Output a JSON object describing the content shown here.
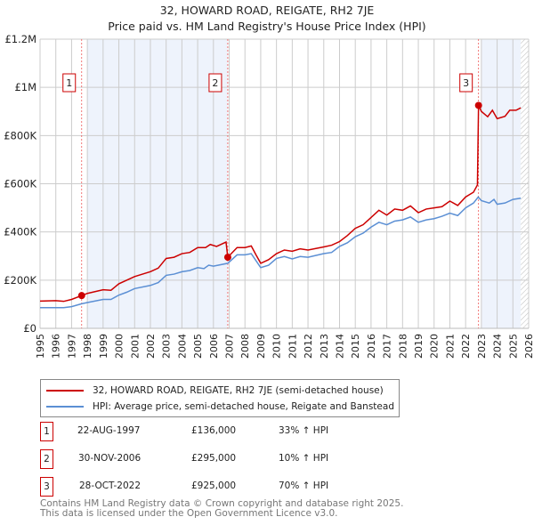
{
  "chart_data": {
    "type": "line",
    "title": "32, HOWARD ROAD, REIGATE, RH2 7JE",
    "subtitle": "Price paid vs. HM Land Registry's House Price Index (HPI)",
    "xlim": [
      1995,
      2026
    ],
    "ylim": [
      0,
      1200000
    ],
    "x_ticks": [
      "1995",
      "1996",
      "1997",
      "1998",
      "1999",
      "2000",
      "2001",
      "2002",
      "2003",
      "2004",
      "2005",
      "2006",
      "2007",
      "2008",
      "2009",
      "2010",
      "2011",
      "2012",
      "2013",
      "2014",
      "2015",
      "2016",
      "2017",
      "2018",
      "2019",
      "2020",
      "2021",
      "2022",
      "2023",
      "2024",
      "2025",
      "2026"
    ],
    "y_ticks": [
      {
        "v": 0,
        "label": "£0"
      },
      {
        "v": 200000,
        "label": "£200K"
      },
      {
        "v": 400000,
        "label": "£400K"
      },
      {
        "v": 600000,
        "label": "£600K"
      },
      {
        "v": 800000,
        "label": "£800K"
      },
      {
        "v": 1000000,
        "label": "£1M"
      },
      {
        "v": 1200000,
        "label": "£1.2M"
      }
    ],
    "grid": true,
    "series": [
      {
        "name": "32, HOWARD ROAD, REIGATE, RH2 7JE (semi-detached house)",
        "color": "#cc0000",
        "points": [
          [
            1995,
            113000
          ],
          [
            1996,
            115000
          ],
          [
            1996.5,
            112000
          ],
          [
            1997,
            120000
          ],
          [
            1997.64,
            136000
          ],
          [
            1998,
            145000
          ],
          [
            1999,
            160000
          ],
          [
            1999.5,
            158000
          ],
          [
            2000,
            185000
          ],
          [
            2001,
            215000
          ],
          [
            2002,
            235000
          ],
          [
            2002.5,
            250000
          ],
          [
            2003,
            290000
          ],
          [
            2003.5,
            295000
          ],
          [
            2004,
            310000
          ],
          [
            2004.5,
            315000
          ],
          [
            2005,
            335000
          ],
          [
            2005.5,
            335000
          ],
          [
            2005.8,
            348000
          ],
          [
            2006.2,
            340000
          ],
          [
            2006.8,
            358000
          ],
          [
            2006.91,
            295000
          ],
          [
            2007.5,
            335000
          ],
          [
            2008,
            335000
          ],
          [
            2008.4,
            342000
          ],
          [
            2008.7,
            305000
          ],
          [
            2009,
            270000
          ],
          [
            2009.5,
            285000
          ],
          [
            2010,
            310000
          ],
          [
            2010.5,
            325000
          ],
          [
            2011,
            320000
          ],
          [
            2011.5,
            330000
          ],
          [
            2012,
            325000
          ],
          [
            2013,
            338000
          ],
          [
            2013.5,
            345000
          ],
          [
            2014,
            360000
          ],
          [
            2014.5,
            385000
          ],
          [
            2015,
            415000
          ],
          [
            2015.5,
            430000
          ],
          [
            2016,
            460000
          ],
          [
            2016.5,
            490000
          ],
          [
            2017,
            470000
          ],
          [
            2017.5,
            495000
          ],
          [
            2018,
            490000
          ],
          [
            2018.5,
            508000
          ],
          [
            2019,
            480000
          ],
          [
            2019.5,
            495000
          ],
          [
            2020,
            500000
          ],
          [
            2020.5,
            505000
          ],
          [
            2021,
            528000
          ],
          [
            2021.5,
            510000
          ],
          [
            2022,
            545000
          ],
          [
            2022.5,
            565000
          ],
          [
            2022.75,
            595000
          ],
          [
            2022.82,
            925000
          ],
          [
            2023,
            900000
          ],
          [
            2023.4,
            878000
          ],
          [
            2023.7,
            905000
          ],
          [
            2024,
            870000
          ],
          [
            2024.5,
            880000
          ],
          [
            2024.8,
            905000
          ],
          [
            2025.2,
            905000
          ],
          [
            2025.5,
            915000
          ]
        ]
      },
      {
        "name": "HPI: Average price, semi-detached house, Reigate and Banstead",
        "color": "#5b8fd4",
        "points": [
          [
            1995,
            86000
          ],
          [
            1996,
            86000
          ],
          [
            1996.5,
            86000
          ],
          [
            1997,
            90000
          ],
          [
            1997.64,
            102000
          ],
          [
            1998,
            107000
          ],
          [
            1999,
            120000
          ],
          [
            1999.5,
            120000
          ],
          [
            2000,
            138000
          ],
          [
            2000.5,
            150000
          ],
          [
            2001,
            165000
          ],
          [
            2002,
            178000
          ],
          [
            2002.5,
            190000
          ],
          [
            2003,
            220000
          ],
          [
            2003.5,
            225000
          ],
          [
            2004,
            235000
          ],
          [
            2004.5,
            240000
          ],
          [
            2005,
            252000
          ],
          [
            2005.4,
            248000
          ],
          [
            2005.7,
            262000
          ],
          [
            2006,
            258000
          ],
          [
            2006.91,
            270000
          ],
          [
            2007.5,
            305000
          ],
          [
            2008,
            305000
          ],
          [
            2008.4,
            310000
          ],
          [
            2009,
            252000
          ],
          [
            2009.5,
            262000
          ],
          [
            2010,
            290000
          ],
          [
            2010.5,
            298000
          ],
          [
            2011,
            288000
          ],
          [
            2011.5,
            298000
          ],
          [
            2012,
            295000
          ],
          [
            2013,
            310000
          ],
          [
            2013.5,
            315000
          ],
          [
            2014,
            340000
          ],
          [
            2014.5,
            355000
          ],
          [
            2015,
            380000
          ],
          [
            2015.5,
            395000
          ],
          [
            2016,
            420000
          ],
          [
            2016.5,
            440000
          ],
          [
            2017,
            430000
          ],
          [
            2017.5,
            445000
          ],
          [
            2018,
            450000
          ],
          [
            2018.5,
            462000
          ],
          [
            2019,
            440000
          ],
          [
            2019.5,
            450000
          ],
          [
            2020,
            455000
          ],
          [
            2020.5,
            465000
          ],
          [
            2021,
            478000
          ],
          [
            2021.5,
            468000
          ],
          [
            2022,
            500000
          ],
          [
            2022.5,
            520000
          ],
          [
            2022.8,
            545000
          ],
          [
            2023,
            530000
          ],
          [
            2023.5,
            520000
          ],
          [
            2023.8,
            535000
          ],
          [
            2024,
            515000
          ],
          [
            2024.5,
            520000
          ],
          [
            2025,
            535000
          ],
          [
            2025.5,
            540000
          ]
        ]
      }
    ],
    "sales": [
      {
        "label": "1",
        "x": 1997.64,
        "y": 136000
      },
      {
        "label": "2",
        "x": 2006.91,
        "y": 295000
      },
      {
        "label": "3",
        "x": 2022.82,
        "y": 925000
      }
    ],
    "shaded_ranges": [
      [
        1998,
        2006.91
      ],
      [
        2023,
        2025.5
      ]
    ],
    "forecast_hatch_from": 2025.5
  },
  "legend": {
    "red": "32, HOWARD ROAD, REIGATE, RH2 7JE (semi-detached house)",
    "blue": "HPI: Average price, semi-detached house, Reigate and Banstead"
  },
  "table": [
    {
      "num": "1",
      "date": "22-AUG-1997",
      "price": "£136,000",
      "hpi": "33% ↑ HPI"
    },
    {
      "num": "2",
      "date": "30-NOV-2006",
      "price": "£295,000",
      "hpi": "10% ↑ HPI"
    },
    {
      "num": "3",
      "date": "28-OCT-2022",
      "price": "£925,000",
      "hpi": "70% ↑ HPI"
    }
  ],
  "footer": {
    "line1": "Contains HM Land Registry data © Crown copyright and database right 2025.",
    "line2": "This data is licensed under the Open Government Licence v3.0."
  }
}
